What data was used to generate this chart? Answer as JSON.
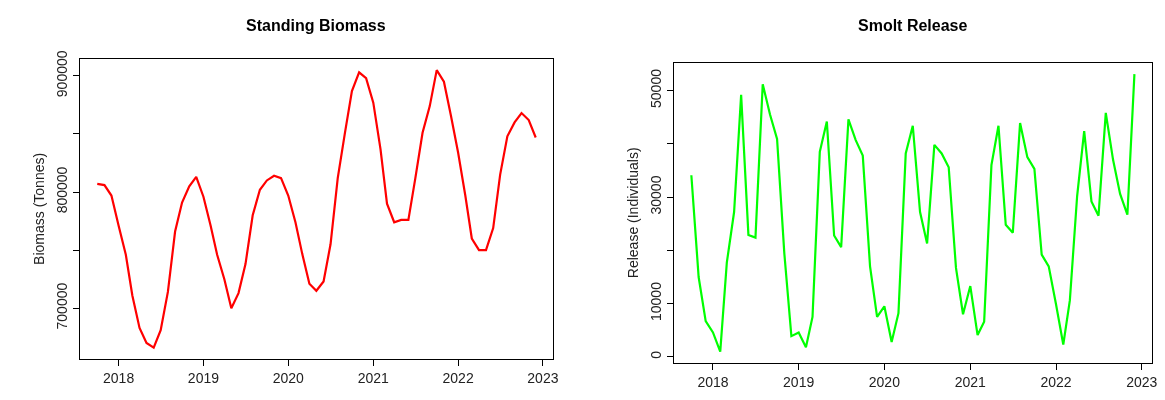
{
  "chart_data": [
    {
      "type": "line",
      "title": "Standing Biomass",
      "ylabel": "Biomass (Tonnes)",
      "color": "#ff0000",
      "marker": "none",
      "line_style": "solid",
      "x": [
        "2017-10",
        "2017-11",
        "2017-12",
        "2018-01",
        "2018-02",
        "2018-03",
        "2018-04",
        "2018-05",
        "2018-06",
        "2018-07",
        "2018-08",
        "2018-09",
        "2018-10",
        "2018-11",
        "2018-12",
        "2019-01",
        "2019-02",
        "2019-03",
        "2019-04",
        "2019-05",
        "2019-06",
        "2019-07",
        "2019-08",
        "2019-09",
        "2019-10",
        "2019-11",
        "2019-12",
        "2020-01",
        "2020-02",
        "2020-03",
        "2020-04",
        "2020-05",
        "2020-06",
        "2020-07",
        "2020-08",
        "2020-09",
        "2020-10",
        "2020-11",
        "2020-12",
        "2021-01",
        "2021-02",
        "2021-03",
        "2021-04",
        "2021-05",
        "2021-06",
        "2021-07",
        "2021-08",
        "2021-09",
        "2021-10",
        "2021-11",
        "2021-12",
        "2022-01",
        "2022-02",
        "2022-03",
        "2022-04",
        "2022-05",
        "2022-06",
        "2022-07",
        "2022-08",
        "2022-09",
        "2022-10",
        "2022-11",
        "2022-12"
      ],
      "values": [
        807000,
        806000,
        797000,
        771000,
        746000,
        711000,
        683000,
        670000,
        666000,
        681000,
        714000,
        766000,
        791000,
        805000,
        813000,
        796000,
        771000,
        746000,
        725000,
        700000,
        713000,
        738000,
        780000,
        802000,
        810000,
        814000,
        812000,
        797000,
        774000,
        747000,
        721000,
        715000,
        723000,
        755000,
        812000,
        851000,
        887000,
        903000,
        898000,
        877000,
        837000,
        790000,
        774000,
        776000,
        776000,
        812000,
        851000,
        874000,
        905000,
        895000,
        866000,
        834000,
        797000,
        760000,
        750000,
        750000,
        769000,
        815000,
        848000,
        860000,
        868000,
        862000,
        847000
      ],
      "xlim": [
        "2017-07-17",
        "2023-02-14"
      ],
      "xticks": [
        "2018",
        "2019",
        "2020",
        "2021",
        "2022",
        "2023"
      ],
      "ylim": [
        656400,
        914600
      ],
      "yticks": [
        700000,
        {
          "value": 750000,
          "label": null
        },
        800000,
        {
          "value": 850000,
          "label": null
        },
        900000
      ]
    },
    {
      "type": "line",
      "title": "Smolt Release",
      "ylabel": "Release (Individuals)",
      "color": "#00ff00",
      "marker": "none",
      "line_style": "solid",
      "x": [
        "2017-10",
        "2017-11",
        "2017-12",
        "2018-01",
        "2018-02",
        "2018-03",
        "2018-04",
        "2018-05",
        "2018-06",
        "2018-07",
        "2018-08",
        "2018-09",
        "2018-10",
        "2018-11",
        "2018-12",
        "2019-01",
        "2019-02",
        "2019-03",
        "2019-04",
        "2019-05",
        "2019-06",
        "2019-07",
        "2019-08",
        "2019-09",
        "2019-10",
        "2019-11",
        "2019-12",
        "2020-01",
        "2020-02",
        "2020-03",
        "2020-04",
        "2020-05",
        "2020-06",
        "2020-07",
        "2020-08",
        "2020-09",
        "2020-10",
        "2020-11",
        "2020-12",
        "2021-01",
        "2021-02",
        "2021-03",
        "2021-04",
        "2021-05",
        "2021-06",
        "2021-07",
        "2021-08",
        "2021-09",
        "2021-10",
        "2021-11",
        "2021-12",
        "2022-01",
        "2022-02",
        "2022-03",
        "2022-04",
        "2022-05",
        "2022-06",
        "2022-07",
        "2022-08",
        "2022-09",
        "2022-10",
        "2022-11",
        "2022-12"
      ],
      "values": [
        34100,
        15000,
        6700,
        4600,
        1000,
        17700,
        27200,
        49200,
        22900,
        22400,
        51200,
        45500,
        40900,
        19400,
        3900,
        4600,
        1800,
        7500,
        38500,
        44200,
        22800,
        20600,
        44600,
        40700,
        37800,
        17000,
        7500,
        9500,
        2800,
        8200,
        38200,
        43400,
        27200,
        21300,
        39800,
        38200,
        35600,
        16700,
        8000,
        13300,
        4100,
        6600,
        36000,
        43400,
        24800,
        23300,
        43900,
        37500,
        35300,
        19200,
        17000,
        9900,
        2300,
        10600,
        30200,
        42400,
        29200,
        26500,
        45800,
        37000,
        30600,
        26700,
        53100
      ],
      "xlim": [
        "2017-07-17",
        "2023-02-14"
      ],
      "xticks": [
        "2018",
        "2019",
        "2020",
        "2021",
        "2022",
        "2023"
      ],
      "ylim": [
        -1100,
        55200
      ],
      "yticks": [
        0,
        10000,
        {
          "value": 20000,
          "label": null
        },
        30000,
        {
          "value": 40000,
          "label": null
        },
        50000
      ]
    }
  ]
}
